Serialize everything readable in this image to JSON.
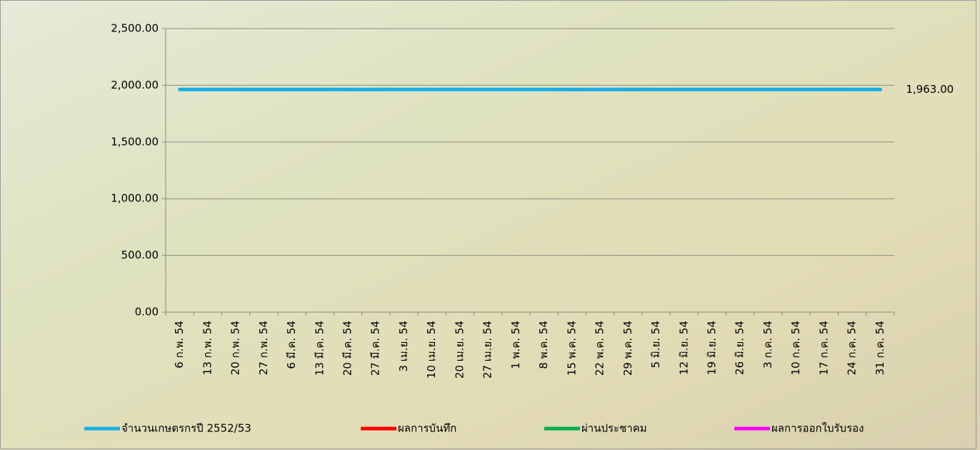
{
  "chart_data": {
    "type": "line",
    "categories": [
      "6 ก.พ. 54",
      "13 ก.พ. 54",
      "20 ก.พ. 54",
      "27 ก.พ. 54",
      "6 มี.ค. 54",
      "13 มี.ค. 54",
      "20 มี.ค. 54",
      "27 มี.ค. 54",
      "3 เม.ย. 54",
      "10 เม.ย. 54",
      "20 เม.ย. 54",
      "27 เม.ย. 54",
      "1 พ.ค. 54",
      "8 พ.ค. 54",
      "15 พ.ค. 54",
      "22 พ.ค. 54",
      "29 พ.ค. 54",
      "5 มิ.ย. 54",
      "12 มิ.ย. 54",
      "19 มิ.ย. 54",
      "26 มิ.ย. 54",
      "3 ก.ค. 54",
      "10 ก.ค. 54",
      "17 ก.ค. 54",
      "24 ก.ค. 54",
      "31 ก.ค. 54"
    ],
    "series": [
      {
        "name": "จำนวนเกษตรกรปี  2552/53",
        "color": "#1aaee6",
        "values": [
          1963,
          1963,
          1963,
          1963,
          1963,
          1963,
          1963,
          1963,
          1963,
          1963,
          1963,
          1963,
          1963,
          1963,
          1963,
          1963,
          1963,
          1963,
          1963,
          1963,
          1963,
          1963,
          1963,
          1963,
          1963,
          1963
        ],
        "value_labels": [
          null,
          null,
          null,
          null,
          null,
          null,
          null,
          null,
          null,
          null,
          null,
          null,
          null,
          null,
          null,
          null,
          null,
          null,
          null,
          null,
          null,
          null,
          null,
          null,
          null,
          "1,963.00"
        ]
      },
      {
        "name": "ผลการบันทึก",
        "color": "#ff0000",
        "values": [
          null,
          null,
          null,
          null,
          null,
          null,
          null,
          null,
          null,
          null,
          null,
          null,
          null,
          null,
          null,
          null,
          null,
          null,
          null,
          null,
          null,
          null,
          null,
          null,
          null,
          null
        ]
      },
      {
        "name": "ผ่านประชาคม",
        "color": "#00b050",
        "values": [
          null,
          null,
          null,
          null,
          null,
          null,
          null,
          null,
          null,
          null,
          null,
          null,
          null,
          null,
          null,
          null,
          null,
          null,
          null,
          null,
          null,
          null,
          null,
          null,
          null,
          null
        ]
      },
      {
        "name": "ผลการออกใบรับรอง",
        "color": "#ff00ff",
        "values": [
          null,
          null,
          null,
          null,
          null,
          null,
          null,
          null,
          null,
          null,
          null,
          null,
          null,
          null,
          null,
          null,
          null,
          null,
          null,
          null,
          null,
          null,
          null,
          null,
          null,
          null
        ]
      }
    ],
    "ylim": [
      0,
      2500
    ],
    "yticks": [
      {
        "value": 0,
        "label": "0.00"
      },
      {
        "value": 500,
        "label": "500.00"
      },
      {
        "value": 1000,
        "label": "1,000.00"
      },
      {
        "value": 1500,
        "label": "1,500.00"
      },
      {
        "value": 2000,
        "label": "2,000.00"
      },
      {
        "value": 2500,
        "label": "2,500.00"
      }
    ],
    "grid": true
  }
}
